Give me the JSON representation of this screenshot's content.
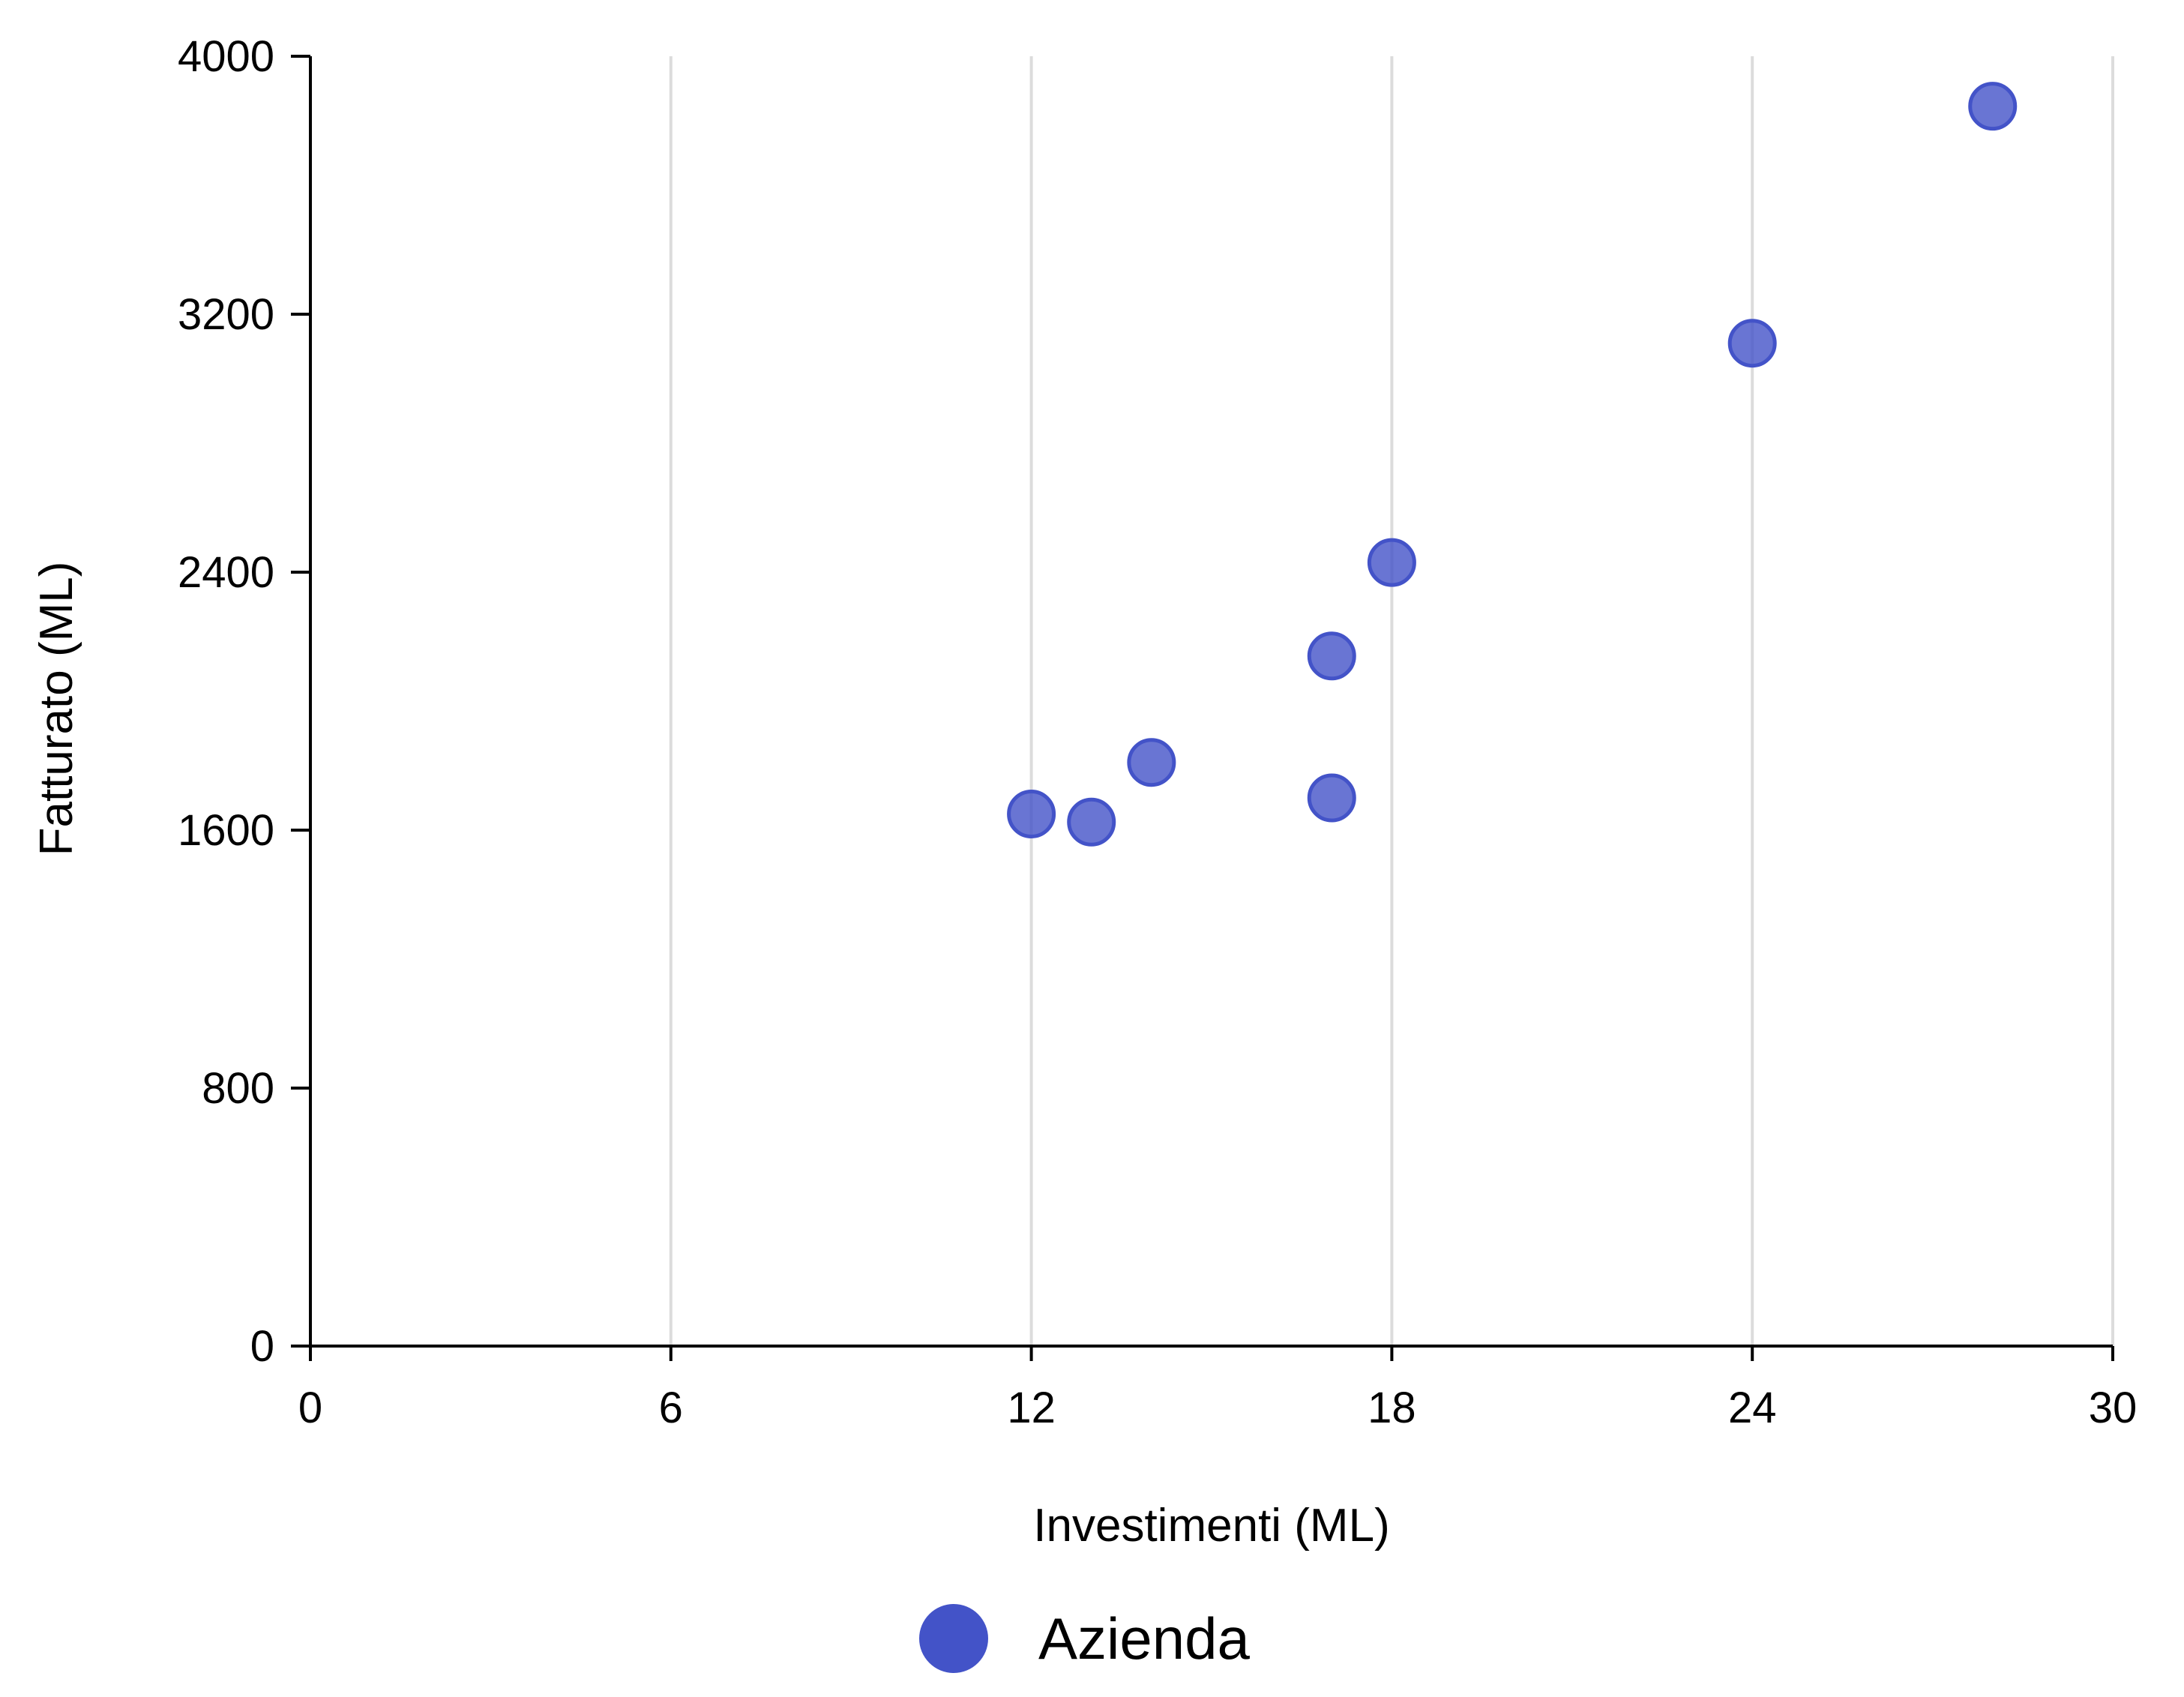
{
  "chart_data": {
    "type": "scatter",
    "title": "",
    "xlabel": "Investimenti (ML)",
    "ylabel": "Fatturato (ML)",
    "xlim": [
      0,
      30
    ],
    "ylim": [
      0,
      4000
    ],
    "xticks": [
      0,
      6,
      12,
      18,
      24,
      30
    ],
    "yticks": [
      0,
      800,
      1600,
      2400,
      3200,
      4000
    ],
    "grid": "vertical",
    "legend_position": "bottom-center",
    "series": [
      {
        "name": "Azienda",
        "color": "#4353c8",
        "points": [
          {
            "x": 12,
            "y": 1650
          },
          {
            "x": 13,
            "y": 1625
          },
          {
            "x": 14,
            "y": 1810
          },
          {
            "x": 17,
            "y": 1700
          },
          {
            "x": 17,
            "y": 2140
          },
          {
            "x": 18,
            "y": 2430
          },
          {
            "x": 24,
            "y": 3110
          },
          {
            "x": 28,
            "y": 3845
          }
        ]
      }
    ]
  }
}
